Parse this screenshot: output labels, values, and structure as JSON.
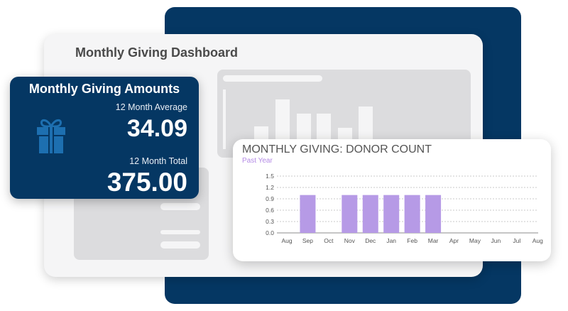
{
  "dashboard": {
    "title": "Monthly Giving Dashboard"
  },
  "amounts_card": {
    "title": "Monthly Giving Amounts",
    "icon": "gift-icon",
    "average_label": "12 Month Average",
    "average_value": "34.09",
    "total_label": "12 Month Total",
    "total_value": "375.00"
  },
  "colors": {
    "navy": "#053763",
    "gift_icon": "#1d6fb0",
    "bar": "#b69ae6",
    "subtitle": "#b48be6"
  },
  "chart_data": {
    "type": "bar",
    "title": "MONTHLY GIVING: DONOR COUNT",
    "subtitle": "Past Year",
    "categories": [
      "Aug",
      "Sep",
      "Oct",
      "Nov",
      "Dec",
      "Jan",
      "Feb",
      "Mar",
      "Apr",
      "May",
      "Jun",
      "Jul",
      "Aug"
    ],
    "values": [
      0,
      1,
      0,
      1,
      1,
      1,
      1,
      1,
      0,
      0,
      0,
      0,
      0
    ],
    "yticks": [
      "0.0",
      "0.3",
      "0.6",
      "0.9",
      "1.2",
      "1.5"
    ],
    "ylim": [
      0,
      1.5
    ],
    "grid": true,
    "xlabel": "",
    "ylabel": ""
  }
}
